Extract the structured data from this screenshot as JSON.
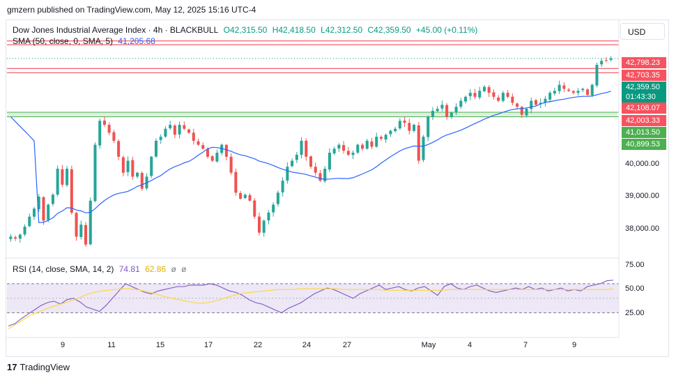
{
  "header": {
    "publisher": "gmzern published on TradingView.com, May 12, 2025 15:16 UTC-4"
  },
  "legend": {
    "symbol": "Dow Jones Industrial Average Index · 4h · BLACKBULL",
    "open": "O42,315.50",
    "high": "H42,418.50",
    "low": "L42,312.50",
    "close": "C42,359.50",
    "change": "+45.00 (+0.11%)",
    "sma_label": "SMA (50, close, 0, SMA, 5)",
    "sma_value": "41,205.68",
    "rsi_label": "RSI (14, close, SMA, 14, 2)",
    "rsi_value": "74.81",
    "rsi_ma_value": "62.86",
    "rsi_extra1": "ø",
    "rsi_extra2": "ø"
  },
  "currency": "USD",
  "price_labels": {
    "r1": "42,798.23",
    "r2": "42,703.35",
    "last": "42,359.50",
    "countdown": "01:43:30",
    "r3": "42,108.07",
    "r4": "42,003.33",
    "s1": "41,013.50",
    "s2": "40,899.53"
  },
  "price_axis": [
    "40,000.00",
    "39,000.00",
    "38,000.00"
  ],
  "rsi_axis": [
    "75.00",
    "50.00",
    "25.00"
  ],
  "date_axis": [
    "9",
    "11",
    "15",
    "17",
    "22",
    "24",
    "27",
    "May",
    "4",
    "7",
    "9"
  ],
  "brand": {
    "name": "TradingView"
  },
  "colors": {
    "up": "#26a69a",
    "down": "#ef5350",
    "sma": "#2962ff",
    "rsi": "#7e57c2",
    "rsi_ma": "#fdd835",
    "resistance": "#f23645",
    "support": "#4caf50",
    "rsi_band": "#ede7f6"
  },
  "chart_data": [
    {
      "type": "candlestick",
      "title": "Dow Jones Industrial Average Index · 4h · BLACKBULL",
      "ylim": [
        37400,
        43300
      ],
      "x_ticks": [
        "9",
        "11",
        "15",
        "17",
        "22",
        "24",
        "27",
        "May",
        "4",
        "7",
        "9"
      ],
      "y_ticks": [
        38000,
        39000,
        40000
      ],
      "ohlc_last": {
        "open": 42315.5,
        "high": 42418.5,
        "low": 42312.5,
        "close": 42359.5
      },
      "closes": [
        37900,
        37850,
        37950,
        38150,
        38400,
        38600,
        38900,
        38300,
        38700,
        38950,
        39600,
        39200,
        39600,
        38500,
        37900,
        38200,
        37700,
        38800,
        40200,
        40800,
        40700,
        40500,
        40300,
        39900,
        39500,
        39800,
        39400,
        39500,
        39100,
        39400,
        39900,
        40300,
        40400,
        40600,
        40700,
        40450,
        40700,
        40600,
        40500,
        40300,
        40200,
        40100,
        39900,
        39800,
        40000,
        40200,
        39900,
        39500,
        39000,
        38850,
        38950,
        38800,
        38400,
        38000,
        38300,
        38500,
        38700,
        39000,
        39300,
        39650,
        39800,
        39950,
        40300,
        39900,
        39650,
        39500,
        39300,
        39600,
        40000,
        40100,
        40200,
        40050,
        39950,
        40000,
        40200,
        40100,
        40300,
        40150,
        40400,
        40350,
        40450,
        40550,
        40600,
        40800,
        40750,
        40550,
        40700,
        39800,
        40400,
        40900,
        41050,
        41100,
        41200,
        40900,
        41000,
        41150,
        41300,
        41400,
        41500,
        41400,
        41550,
        41650,
        41500,
        41400,
        41300,
        41500,
        41400,
        41250,
        41150,
        40950,
        41100,
        41300,
        41200,
        41250,
        41350,
        41500,
        41550,
        41700,
        41600,
        41550,
        41500,
        41550,
        41600,
        41450,
        41700,
        42200,
        42300,
        42315,
        42359.5
      ],
      "series": [
        {
          "name": "SMA (50, close, 0, SMA, 5)",
          "last": 41205.68
        }
      ],
      "levels": {
        "resistance": [
          42798.23,
          42703.35,
          42108.07,
          42003.33
        ],
        "support": [
          41013.5,
          40899.53
        ],
        "last_price": 42359.5
      }
    },
    {
      "type": "line",
      "title": "RSI (14, close, SMA, 14, 2)",
      "ylim": [
        0,
        100
      ],
      "y_ticks": [
        25,
        50,
        75
      ],
      "bands": [
        30,
        70
      ],
      "series": [
        {
          "name": "RSI",
          "last": 74.81,
          "values": [
            12,
            15,
            22,
            28,
            34,
            40,
            44,
            46,
            42,
            48,
            50,
            45,
            38,
            35,
            32,
            40,
            50,
            60,
            70,
            66,
            62,
            58,
            56,
            60,
            62,
            64,
            66,
            66,
            68,
            68,
            68,
            70,
            68,
            64,
            60,
            58,
            54,
            48,
            44,
            42,
            38,
            34,
            30,
            36,
            40,
            44,
            50,
            56,
            60,
            64,
            62,
            58,
            54,
            50,
            56,
            60,
            64,
            68,
            62,
            64,
            66,
            62,
            60,
            64,
            66,
            60,
            54,
            66,
            70,
            64,
            62,
            66,
            68,
            64,
            60,
            58,
            60,
            62,
            64,
            62,
            66,
            62,
            64,
            60,
            62,
            64,
            60,
            62,
            60,
            66,
            68,
            70,
            74,
            74.81
          ]
        },
        {
          "name": "RSI-based MA",
          "last": 62.86,
          "values": [
            8,
            14,
            20,
            26,
            30,
            34,
            38,
            41,
            44,
            47,
            51,
            55,
            58,
            60,
            61,
            62,
            63,
            63,
            62,
            60,
            58,
            55,
            52,
            50,
            48,
            46,
            44,
            43,
            44,
            46,
            49,
            52,
            55,
            57,
            58,
            59,
            60,
            61,
            62,
            62,
            62,
            63,
            63,
            63,
            63,
            63,
            63,
            62,
            62,
            62,
            62,
            62,
            62,
            61,
            61,
            61,
            61,
            61,
            61,
            61,
            61,
            61,
            62,
            62,
            62,
            62,
            62,
            62,
            62,
            62,
            62,
            62,
            62,
            62,
            62,
            62,
            62,
            62,
            62,
            62,
            62,
            62,
            62,
            62,
            62,
            62.86
          ]
        }
      ]
    }
  ]
}
